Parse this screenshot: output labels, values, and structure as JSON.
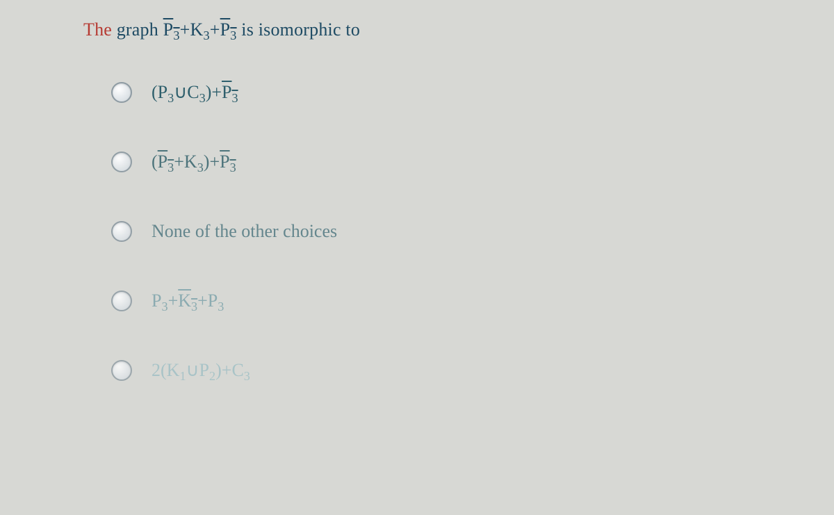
{
  "question": {
    "prefix_red": "The",
    "rest": " graph ",
    "expr_html": "<span class=\"over\">P<span class=\"sub\">3</span></span>+K<span class=\"sub\">3</span>+<span class=\"over\">P<span class=\"sub\">3</span></span>",
    "suffix": " is isomorphic to"
  },
  "options": [
    {
      "name": "option-a",
      "html": "(P<span class=\"sub\">3</span>∪C<span class=\"sub\">3</span>)+<span class=\"over\">P<span class=\"sub\">3</span></span>",
      "color": "#2e5f6c",
      "opacity": 1.0
    },
    {
      "name": "option-b",
      "html": "(<span class=\"over\">P<span class=\"sub\">3</span></span>+K<span class=\"sub\">3</span>)+<span class=\"over\">P<span class=\"sub\">3</span></span>",
      "color": "#466f77",
      "opacity": 0.95
    },
    {
      "name": "option-c",
      "html": "None of the other choices",
      "color": "#5b8088",
      "opacity": 0.92
    },
    {
      "name": "option-d",
      "html": "P<span class=\"sub\">3</span>+<span class=\"over\">K<span class=\"sub\">3</span></span>+P<span class=\"sub\">3</span>",
      "color": "#7ea4ab",
      "opacity": 0.85
    },
    {
      "name": "option-e",
      "html": "2(K<span class=\"sub\">1</span>∪P<span class=\"sub\">2</span>)+C<span class=\"sub\">3</span>",
      "color": "#9dbfc4",
      "opacity": 0.8
    }
  ],
  "styling": {
    "background": "#d7d8d4",
    "stem_color": "#1d4a63",
    "red_color": "#b63a32",
    "radio_border": "#8e9ba3",
    "font": "Times New Roman",
    "stem_fontsize": 26,
    "option_fontsize": 26,
    "option_gap": 70
  }
}
